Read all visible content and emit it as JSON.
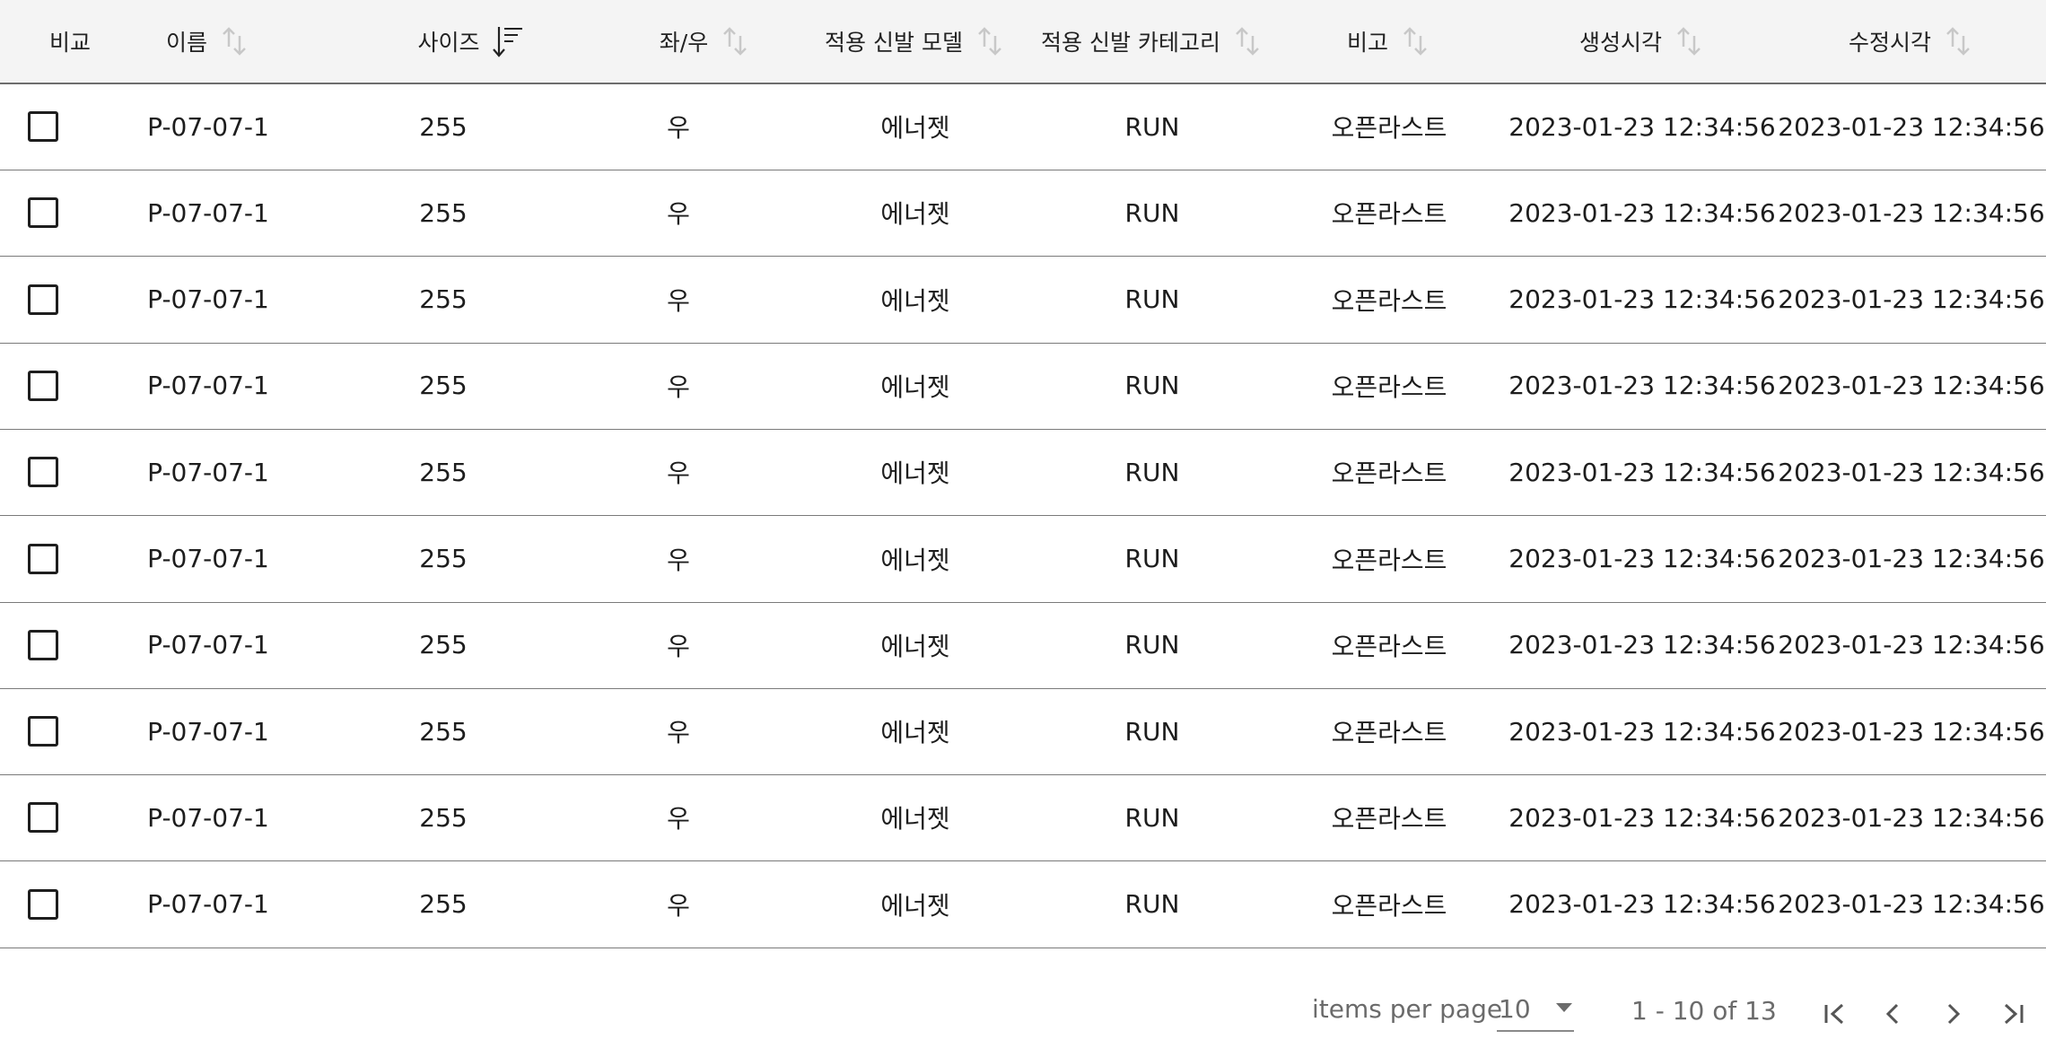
{
  "table": {
    "columns": [
      {
        "label": "비교",
        "sortable": false,
        "sort": "none"
      },
      {
        "label": "이름",
        "sortable": true,
        "sort": "none"
      },
      {
        "label": "사이즈",
        "sortable": true,
        "sort": "desc"
      },
      {
        "label": "좌/우",
        "sortable": true,
        "sort": "none"
      },
      {
        "label": "적용 신발 모델",
        "sortable": true,
        "sort": "none"
      },
      {
        "label": "적용 신발 카테고리",
        "sortable": true,
        "sort": "none"
      },
      {
        "label": "비고",
        "sortable": true,
        "sort": "none"
      },
      {
        "label": "생성시각",
        "sortable": true,
        "sort": "none"
      },
      {
        "label": "수정시각",
        "sortable": true,
        "sort": "none"
      }
    ],
    "rows": [
      {
        "checked": false,
        "name": "P-07-07-1",
        "size": "255",
        "side": "우",
        "model": "에너젯",
        "category": "RUN",
        "note": "오픈라스트",
        "created": "2023-01-23 12:34:56",
        "modified": "2023-01-23 12:34:56"
      },
      {
        "checked": false,
        "name": "P-07-07-1",
        "size": "255",
        "side": "우",
        "model": "에너젯",
        "category": "RUN",
        "note": "오픈라스트",
        "created": "2023-01-23 12:34:56",
        "modified": "2023-01-23 12:34:56"
      },
      {
        "checked": false,
        "name": "P-07-07-1",
        "size": "255",
        "side": "우",
        "model": "에너젯",
        "category": "RUN",
        "note": "오픈라스트",
        "created": "2023-01-23 12:34:56",
        "modified": "2023-01-23 12:34:56"
      },
      {
        "checked": false,
        "name": "P-07-07-1",
        "size": "255",
        "side": "우",
        "model": "에너젯",
        "category": "RUN",
        "note": "오픈라스트",
        "created": "2023-01-23 12:34:56",
        "modified": "2023-01-23 12:34:56"
      },
      {
        "checked": false,
        "name": "P-07-07-1",
        "size": "255",
        "side": "우",
        "model": "에너젯",
        "category": "RUN",
        "note": "오픈라스트",
        "created": "2023-01-23 12:34:56",
        "modified": "2023-01-23 12:34:56"
      },
      {
        "checked": false,
        "name": "P-07-07-1",
        "size": "255",
        "side": "우",
        "model": "에너젯",
        "category": "RUN",
        "note": "오픈라스트",
        "created": "2023-01-23 12:34:56",
        "modified": "2023-01-23 12:34:56"
      },
      {
        "checked": false,
        "name": "P-07-07-1",
        "size": "255",
        "side": "우",
        "model": "에너젯",
        "category": "RUN",
        "note": "오픈라스트",
        "created": "2023-01-23 12:34:56",
        "modified": "2023-01-23 12:34:56"
      },
      {
        "checked": false,
        "name": "P-07-07-1",
        "size": "255",
        "side": "우",
        "model": "에너젯",
        "category": "RUN",
        "note": "오픈라스트",
        "created": "2023-01-23 12:34:56",
        "modified": "2023-01-23 12:34:56"
      },
      {
        "checked": false,
        "name": "P-07-07-1",
        "size": "255",
        "side": "우",
        "model": "에너젯",
        "category": "RUN",
        "note": "오픈라스트",
        "created": "2023-01-23 12:34:56",
        "modified": "2023-01-23 12:34:56"
      },
      {
        "checked": false,
        "name": "P-07-07-1",
        "size": "255",
        "side": "우",
        "model": "에너젯",
        "category": "RUN",
        "note": "오픈라스트",
        "created": "2023-01-23 12:34:56",
        "modified": "2023-01-23 12:34:56"
      }
    ]
  },
  "pagination": {
    "items_per_page_label": "items per page",
    "items_per_page_value": "10",
    "range_label": "1 - 10 of 13",
    "first_icon": "first-page-icon",
    "prev_icon": "chevron-left-icon",
    "next_icon": "chevron-right-icon",
    "last_icon": "last-page-icon"
  },
  "colors": {
    "header_bg": "#f4f4f4",
    "sort_icon_inactive": "#c8c8c8",
    "sort_icon_active": "#222222",
    "muted_text": "#6b6b6b"
  }
}
